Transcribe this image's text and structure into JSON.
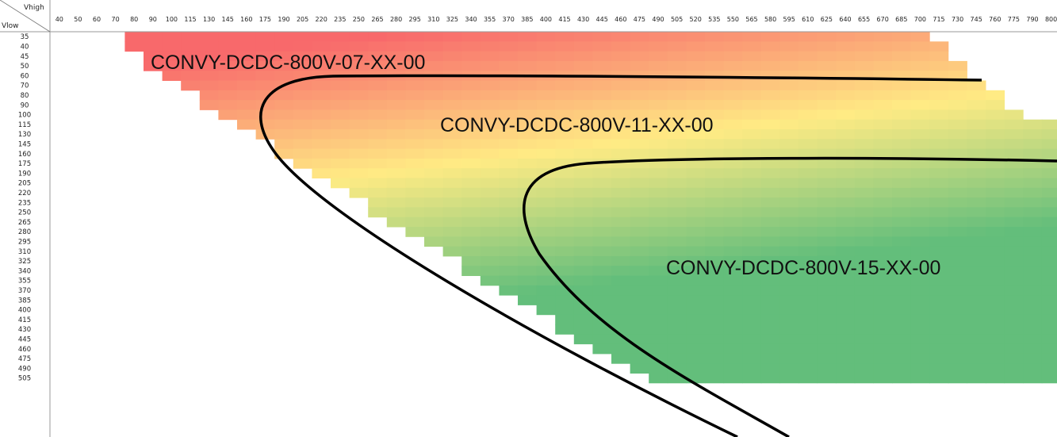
{
  "chart_data": {
    "type": "heatmap",
    "title": "",
    "corner": {
      "col_header": "Vhigh",
      "row_header": "Vlow"
    },
    "x_values": [
      40,
      50,
      60,
      70,
      80,
      90,
      100,
      115,
      130,
      145,
      160,
      175,
      190,
      205,
      220,
      235,
      250,
      265,
      280,
      295,
      310,
      325,
      340,
      355,
      370,
      385,
      400,
      415,
      430,
      445,
      460,
      475,
      490,
      505,
      520,
      535,
      550,
      565,
      580,
      595,
      610,
      625,
      640,
      655,
      670,
      685,
      700,
      715,
      730,
      745,
      760,
      775,
      790,
      800
    ],
    "y_values": [
      35,
      40,
      45,
      50,
      60,
      70,
      80,
      90,
      100,
      115,
      130,
      145,
      160,
      175,
      190,
      205,
      220,
      235,
      250,
      265,
      280,
      295,
      310,
      325,
      340,
      355,
      370,
      385,
      400,
      415,
      430,
      445,
      460,
      475,
      490,
      505
    ],
    "color_scale": {
      "low": "#f8696b",
      "mid": "#ffeb84",
      "high": "#63be7b"
    },
    "regions": [
      {
        "label": "CONVY-DCDC-800V-07-XX-00"
      },
      {
        "label": "CONVY-DCDC-800V-11-XX-00"
      },
      {
        "label": "CONVY-DCDC-800V-15-XX-00"
      }
    ]
  }
}
